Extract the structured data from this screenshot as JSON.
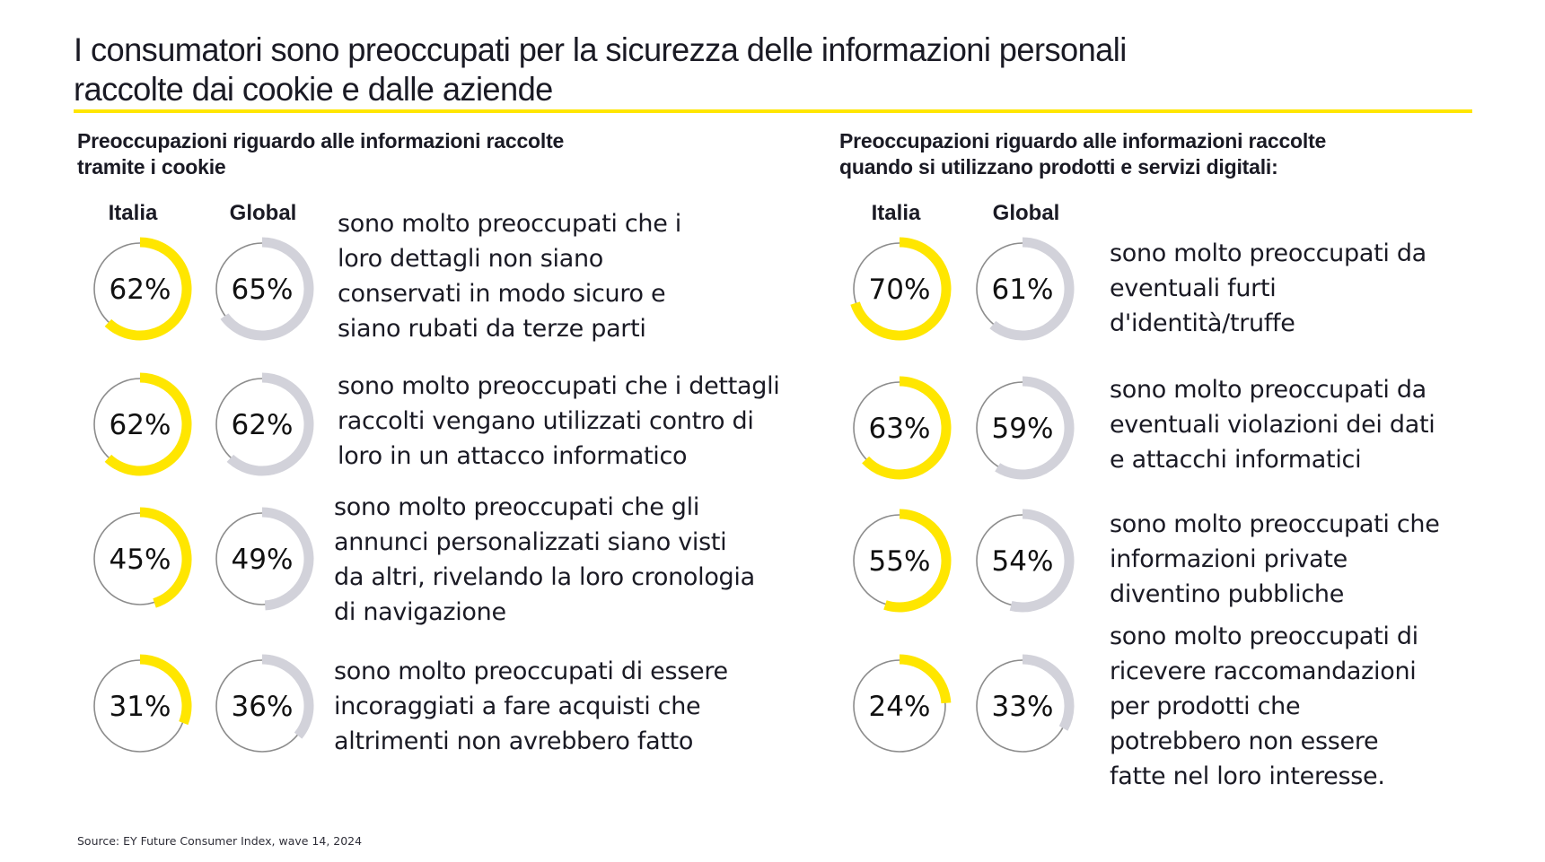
{
  "title_lines": [
    "I consumatori sono preoccupati per la sicurezza delle informazioni personali",
    "raccolte dai cookie e dalle aziende"
  ],
  "colors": {
    "italia": "#ffe600",
    "global": "#d2d2da",
    "track": "#8c8c8c",
    "rule": "#ffe600"
  },
  "source": "Source: EY Future Consumer Index, wave 14, 2024",
  "chart_data": [
    {
      "type": "donut-pairs",
      "title": "Preoccupazioni riguardo alle informazioni raccolte tramite i cookie",
      "title_lines": [
        "Preoccupazioni riguardo alle informazioni raccolte",
        "tramite i cookie"
      ],
      "series_labels": [
        "Italia",
        "Global"
      ],
      "unit": "%",
      "items": [
        {
          "italia": 62,
          "global": 65,
          "label": "sono molto preoccupati che i\nloro dettagli non siano\nconservati in modo sicuro e\nsiano rubati da terze parti"
        },
        {
          "italia": 62,
          "global": 62,
          "label": "sono molto preoccupati che i dettagli\nraccolti vengano utilizzati contro di\nloro in un attacco informatico"
        },
        {
          "italia": 45,
          "global": 49,
          "label": "sono molto preoccupati che gli\nannunci personalizzati siano visti\nda altri, rivelando la loro cronologia\ndi navigazione"
        },
        {
          "italia": 31,
          "global": 36,
          "label": "sono molto preoccupati di essere\nincoraggiati a fare acquisti che\naltrimenti non avrebbero fatto"
        }
      ]
    },
    {
      "type": "donut-pairs",
      "title": "Preoccupazioni riguardo alle informazioni raccolte quando si utilizzano prodotti e servizi digitali:",
      "title_lines": [
        "Preoccupazioni riguardo alle informazioni raccolte",
        "quando si utilizzano prodotti e servizi digitali:"
      ],
      "series_labels": [
        "Italia",
        "Global"
      ],
      "unit": "%",
      "items": [
        {
          "italia": 70,
          "global": 61,
          "label": "sono molto preoccupati da\neventuali furti\nd'identità/truffe"
        },
        {
          "italia": 63,
          "global": 59,
          "label": "sono molto preoccupati da\neventuali violazioni dei dati\ne attacchi informatici"
        },
        {
          "italia": 55,
          "global": 54,
          "label": "sono molto preoccupati che\ninformazioni private\ndiventino pubbliche"
        },
        {
          "italia": 24,
          "global": 33,
          "label": "sono molto preoccupati di\nricevere raccomandazioni\nper prodotti che\npotrebbero non essere\nfatte nel loro interesse."
        }
      ]
    }
  ]
}
